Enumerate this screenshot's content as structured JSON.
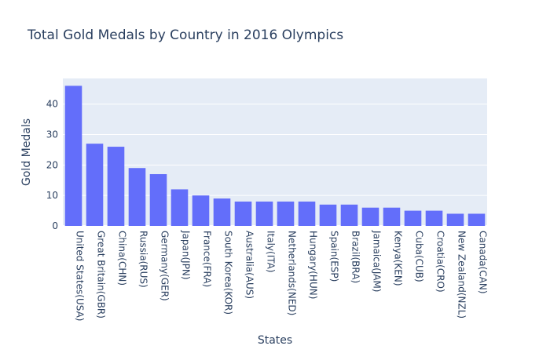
{
  "chart_data": {
    "type": "bar",
    "title": "Total Gold Medals by Country in 2016 Olympics",
    "xlabel": "States",
    "ylabel": "Gold Medals",
    "categories": [
      "United States(USA)",
      "Great Britain(GBR)",
      "China(CHN)",
      "Russia(RUS)",
      "Germany(GER)",
      "Japan(JPN)",
      "France(FRA)",
      "South Korea(KOR)",
      "Australia(AUS)",
      "Italy(ITA)",
      "Netherlands(NED)",
      "Hungary(HUN)",
      "Spain(ESP)",
      "Brazil(BRA)",
      "Jamaica(JAM)",
      "Kenya(KEN)",
      "Cuba(CUB)",
      "Croatia(CRO)",
      "New Zealand(NZL)",
      "Canada(CAN)"
    ],
    "values": [
      46,
      27,
      26,
      19,
      17,
      12,
      10,
      9,
      8,
      8,
      8,
      8,
      7,
      7,
      6,
      6,
      5,
      5,
      4,
      4
    ],
    "ylim": [
      0,
      48.42
    ],
    "yticks": [
      0,
      10,
      20,
      30,
      40
    ],
    "grid": true,
    "legend": "none",
    "colors": {
      "bar": "#636efa",
      "plot_background": "#e5ecf6",
      "text": "#2a3f5f",
      "grid": "#ffffff"
    }
  }
}
